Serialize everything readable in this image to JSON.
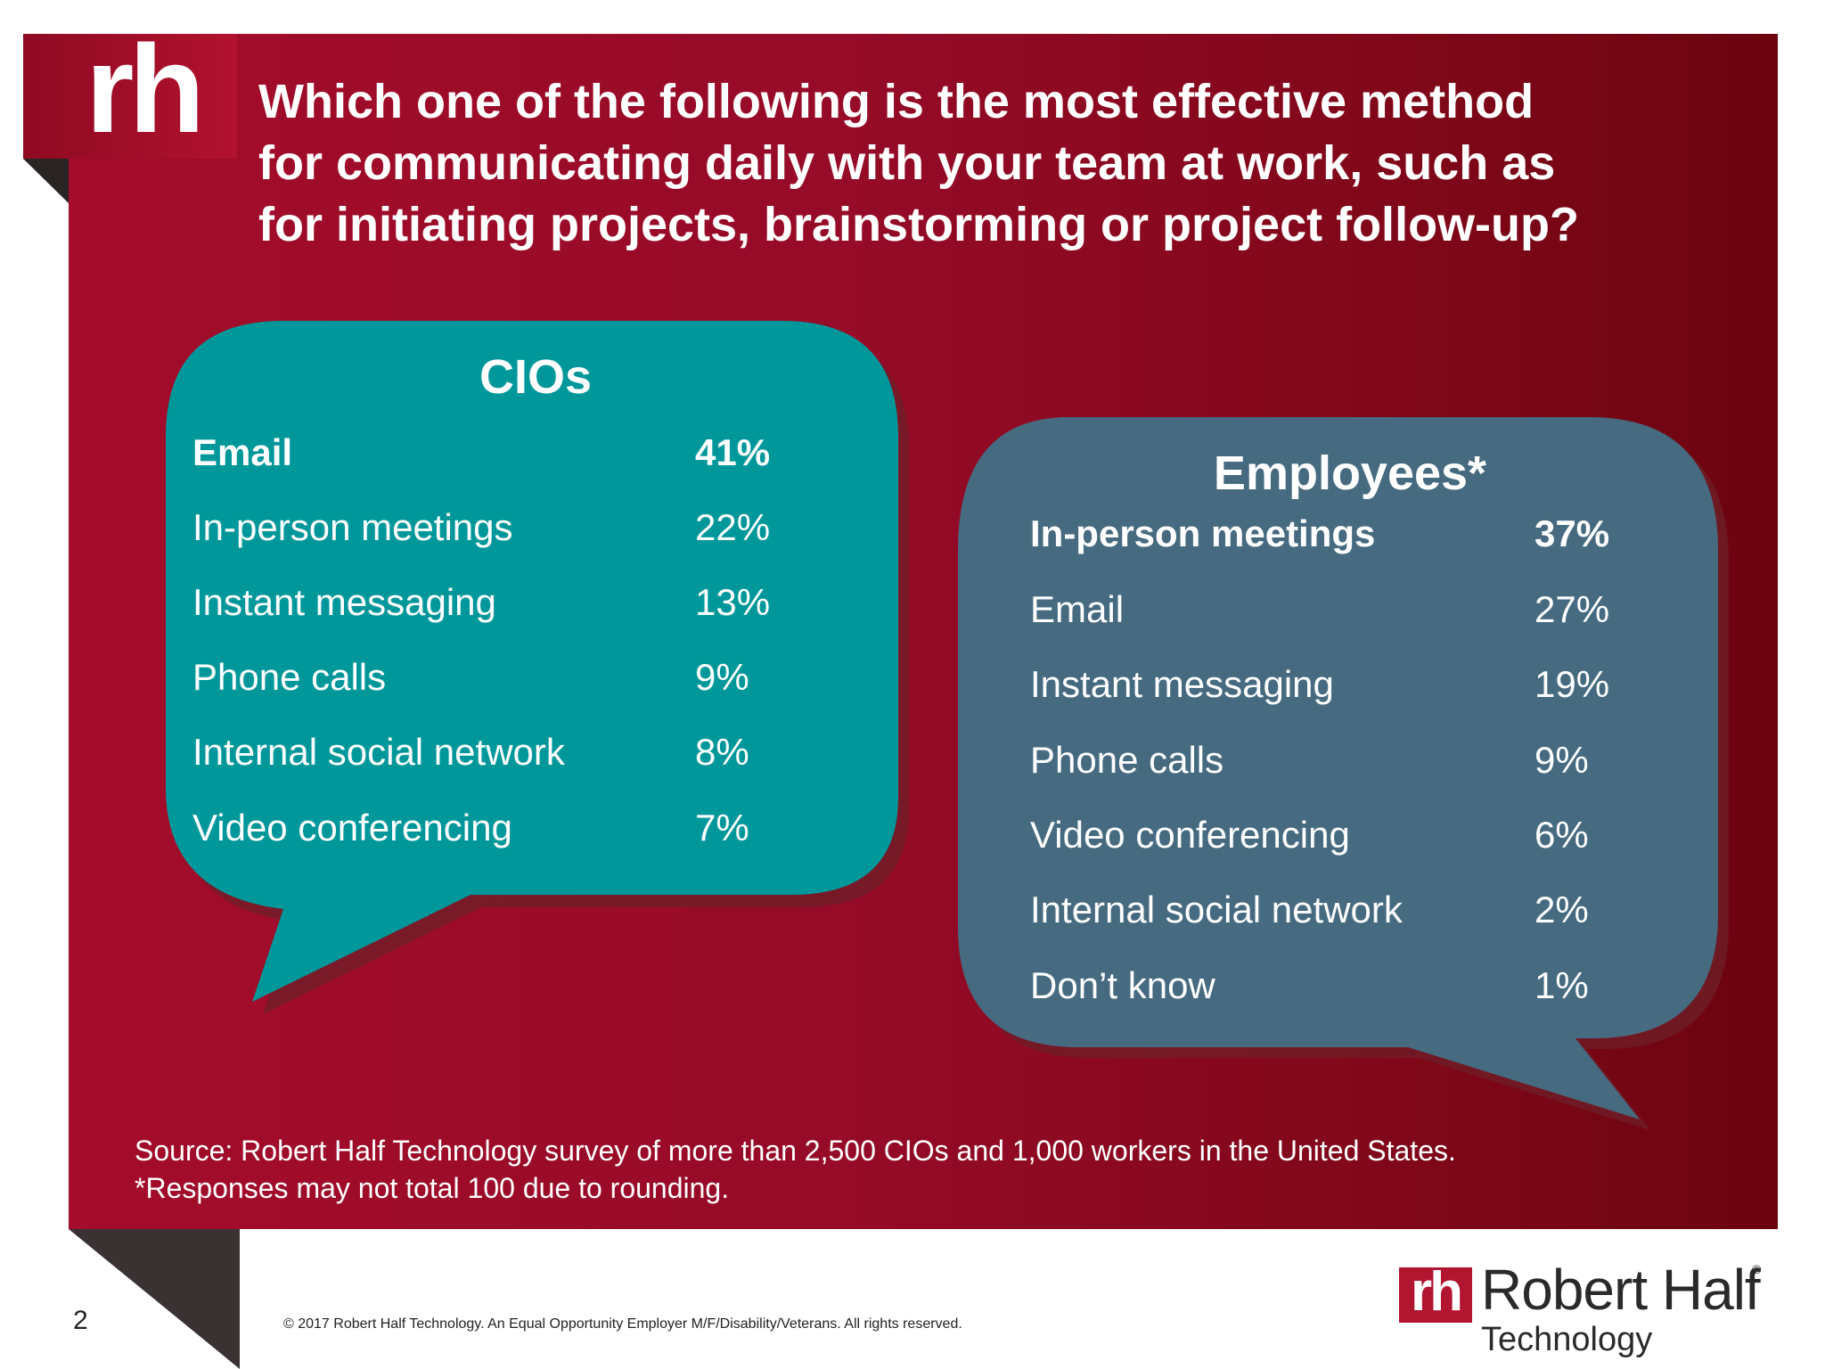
{
  "logo": {
    "mark": "rh"
  },
  "question": {
    "lines": [
      "Which one of the following is the most effective method",
      "for communicating daily with your team at work, such as",
      "for initiating projects, brainstorming or project follow-up?"
    ]
  },
  "chart_data": [
    {
      "type": "table",
      "title": "CIOs",
      "categories": [
        "Email",
        "In-person meetings",
        "Instant messaging",
        "Phone calls",
        "Internal social network",
        "Video conferencing"
      ],
      "values": [
        41,
        22,
        13,
        9,
        8,
        7
      ],
      "labels": [
        "41%",
        "22%",
        "13%",
        "9%",
        "8%",
        "7%"
      ],
      "color": "#00979b"
    },
    {
      "type": "table",
      "title": "Employees*",
      "categories": [
        "In-person meetings",
        "Email",
        "Instant messaging",
        "Phone calls",
        "Video conferencing",
        "Internal social network",
        "Don’t know"
      ],
      "values": [
        37,
        27,
        19,
        9,
        6,
        2,
        1
      ],
      "labels": [
        "37%",
        "27%",
        "19%",
        "9%",
        "6%",
        "2%",
        "1%"
      ],
      "color": "#466a80"
    }
  ],
  "footnotes": {
    "source": "Source: Robert Half Technology survey of more than 2,500 CIOs and 1,000 workers in the United States.",
    "rounding": "*Responses may not total 100 due to rounding."
  },
  "footer": {
    "page_number": "2",
    "copyright": "© 2017 Robert Half Technology. An Equal Opportunity Employer M/F/Disability/Veterans. All rights reserved.",
    "brand_mark": "rh",
    "brand_name": "Robert Half",
    "brand_reg": "®",
    "brand_sub": "Technology"
  },
  "colors": {
    "panel": "#9a0b27",
    "cio_bubble": "#00979b",
    "emp_bubble": "#466a80"
  }
}
